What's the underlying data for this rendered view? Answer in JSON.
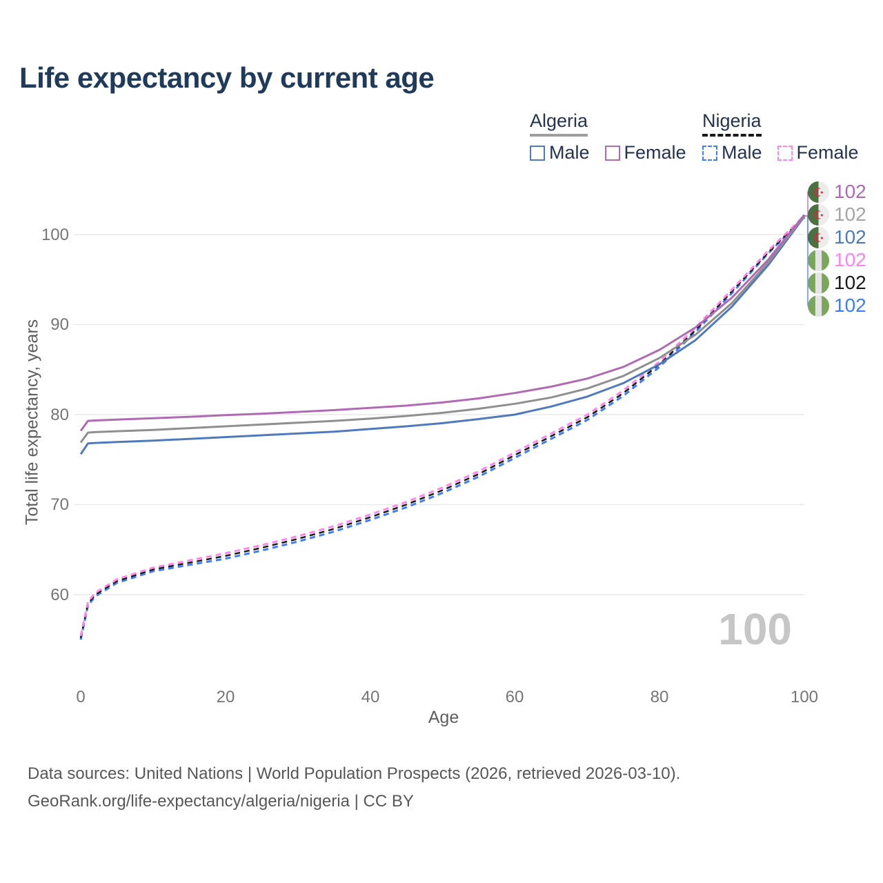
{
  "title": "Life expectancy by current age",
  "legend": {
    "groups": [
      {
        "label": "Algeria",
        "line_style": "solid",
        "line_color": "#9e9e9e",
        "items": [
          {
            "label": "Male",
            "color": "#4f79bd",
            "dashed": false
          },
          {
            "label": "Female",
            "color": "#b06ab4",
            "dashed": false
          }
        ]
      },
      {
        "label": "Nigeria",
        "line_style": "dashed",
        "line_color": "#1a1a1a",
        "items": [
          {
            "label": "Male",
            "color": "#3f7df5",
            "dashed": true
          },
          {
            "label": "Female",
            "color": "#ff85ec",
            "dashed": true
          }
        ]
      }
    ]
  },
  "chart_data": {
    "type": "line",
    "title": "Life expectancy by current age",
    "xlabel": "Age",
    "ylabel": "Total life expectancy, years",
    "xlim": [
      0,
      100
    ],
    "ylim": [
      55,
      103
    ],
    "x_ticks": [
      0,
      20,
      40,
      60,
      80,
      100
    ],
    "y_ticks": [
      60,
      70,
      80,
      90,
      100
    ],
    "grid": "horizontal",
    "legend_position": "top-right",
    "x": [
      0,
      1,
      2,
      5,
      10,
      15,
      20,
      25,
      30,
      35,
      40,
      45,
      50,
      55,
      60,
      65,
      70,
      75,
      80,
      85,
      90,
      95,
      100
    ],
    "series": [
      {
        "name": "Algeria Female",
        "country": "Algeria",
        "sex": "Female",
        "color": "#b06ab4",
        "dash": "solid",
        "end_label": "102",
        "values": [
          78.2,
          79.3,
          79.35,
          79.45,
          79.6,
          79.75,
          79.95,
          80.1,
          80.3,
          80.5,
          80.75,
          81.0,
          81.35,
          81.8,
          82.4,
          83.1,
          84.0,
          85.3,
          87.2,
          89.7,
          93.0,
          97.2,
          102.2
        ]
      },
      {
        "name": "Algeria Both sexes",
        "country": "Algeria",
        "sex": "Both sexes",
        "color": "#8f8f8f",
        "dash": "solid",
        "end_label": "102",
        "values": [
          76.9,
          78.0,
          78.05,
          78.15,
          78.3,
          78.5,
          78.7,
          78.9,
          79.1,
          79.3,
          79.55,
          79.85,
          80.2,
          80.65,
          81.2,
          81.9,
          82.9,
          84.3,
          86.3,
          88.9,
          92.4,
          96.9,
          102.1
        ]
      },
      {
        "name": "Algeria Male",
        "country": "Algeria",
        "sex": "Male",
        "color": "#4f79bd",
        "dash": "solid",
        "end_label": "102",
        "values": [
          75.6,
          76.8,
          76.85,
          76.95,
          77.1,
          77.3,
          77.5,
          77.7,
          77.9,
          78.1,
          78.4,
          78.7,
          79.05,
          79.5,
          80.0,
          80.9,
          82.0,
          83.5,
          85.6,
          88.3,
          92.0,
          96.6,
          102.0
        ]
      },
      {
        "name": "Nigeria Female",
        "country": "Nigeria",
        "sex": "Female",
        "color": "#ff85ec",
        "dash": "dashed",
        "end_label": "102",
        "values": [
          55.4,
          59.2,
          60.2,
          61.7,
          63.0,
          63.8,
          64.6,
          65.5,
          66.5,
          67.6,
          68.9,
          70.3,
          71.9,
          73.7,
          75.8,
          77.9,
          80.0,
          82.7,
          85.9,
          89.7,
          93.9,
          98.2,
          102.1
        ]
      },
      {
        "name": "Nigeria Both sexes",
        "country": "Nigeria",
        "sex": "Both sexes",
        "color": "#1a1a1a",
        "dash": "dashed",
        "end_label": "102",
        "values": [
          55.2,
          59.0,
          60.0,
          61.5,
          62.8,
          63.55,
          64.3,
          65.2,
          66.2,
          67.3,
          68.6,
          70.0,
          71.6,
          73.4,
          75.5,
          77.6,
          79.7,
          82.4,
          85.6,
          89.4,
          93.7,
          98.0,
          102.0
        ]
      },
      {
        "name": "Nigeria Male",
        "country": "Nigeria",
        "sex": "Male",
        "color": "#3f7df5",
        "dash": "dashed",
        "end_label": "102",
        "values": [
          55.0,
          58.8,
          59.8,
          61.3,
          62.6,
          63.3,
          64.0,
          64.9,
          65.9,
          67.0,
          68.3,
          69.7,
          71.3,
          73.1,
          75.2,
          77.3,
          79.4,
          82.1,
          85.3,
          89.2,
          93.5,
          97.9,
          101.9
        ]
      }
    ],
    "age_indicator": "100"
  },
  "endpoints": [
    {
      "country": "Algeria",
      "sex": "Female",
      "value": "102",
      "color": "#b06ab4"
    },
    {
      "country": "Algeria",
      "sex": "Both sexes",
      "value": "102",
      "color": "#a5a5a5"
    },
    {
      "country": "Algeria",
      "sex": "Male",
      "value": "102",
      "color": "#4f79bd"
    },
    {
      "country": "Nigeria",
      "sex": "Female",
      "value": "102",
      "color": "#ff85ec"
    },
    {
      "country": "Nigeria",
      "sex": "Both sexes",
      "value": "102",
      "color": "#1a1a1a"
    },
    {
      "country": "Nigeria",
      "sex": "Male",
      "value": "102",
      "color": "#3f7df5"
    }
  ],
  "watermark": "100",
  "footer": {
    "line1": "Data sources: United Nations | World Population Prospects (2026, retrieved 2026-03-10).",
    "line2": "GeoRank.org/life-expectancy/algeria/nigeria | CC BY"
  }
}
